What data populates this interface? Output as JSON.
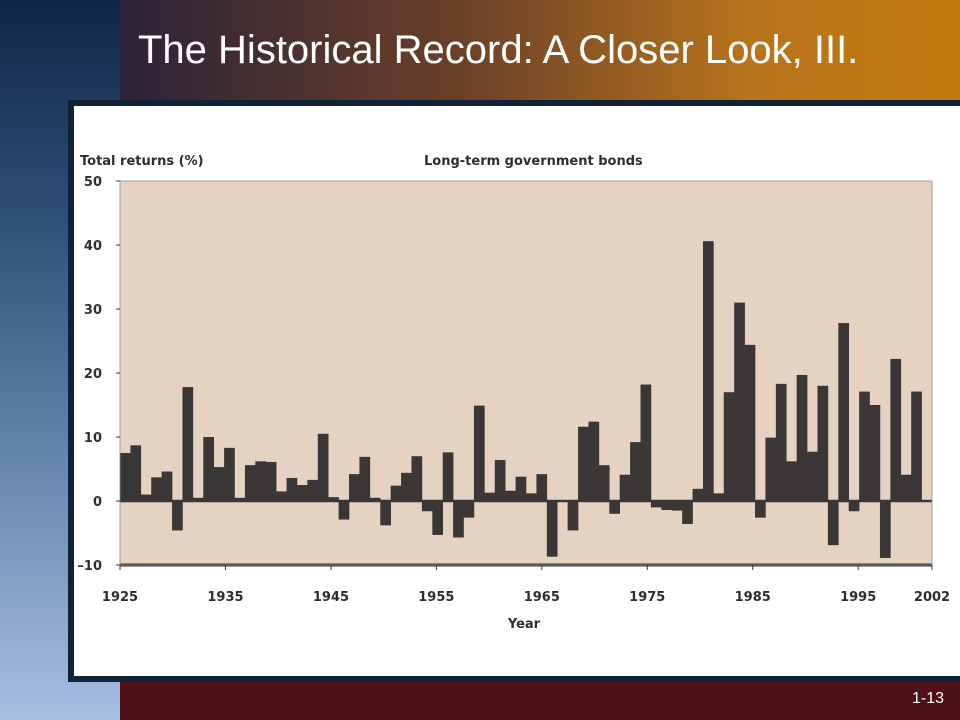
{
  "slide": {
    "title": "The Historical Record: A Closer Look, III.",
    "slide_number": "1-13"
  },
  "colors": {
    "plot_background": "#e6d2c1",
    "bar_fill": "#3b3736",
    "axis": "#3b3736"
  },
  "chart_data": {
    "type": "bar",
    "title": "Long-term government bonds",
    "ylabel": "Total returns (%)",
    "xlabel": "Year",
    "ylim": [
      -10,
      50
    ],
    "yticks": [
      -10,
      0,
      10,
      20,
      30,
      40,
      50
    ],
    "ytick_labels": [
      "–10",
      "0",
      "10",
      "20",
      "30",
      "40",
      "50"
    ],
    "xlim": [
      1925,
      2002
    ],
    "xticks": [
      1925,
      1935,
      1945,
      1955,
      1965,
      1975,
      1985,
      1995,
      2002
    ],
    "grid": false,
    "legend": "none",
    "x": [
      1925,
      1926,
      1927,
      1928,
      1929,
      1930,
      1931,
      1932,
      1933,
      1934,
      1935,
      1936,
      1937,
      1938,
      1939,
      1940,
      1941,
      1942,
      1943,
      1944,
      1945,
      1946,
      1947,
      1948,
      1949,
      1950,
      1951,
      1952,
      1953,
      1954,
      1955,
      1956,
      1957,
      1958,
      1959,
      1960,
      1961,
      1962,
      1963,
      1964,
      1965,
      1966,
      1967,
      1968,
      1969,
      1970,
      1971,
      1972,
      1973,
      1974,
      1975,
      1976,
      1977,
      1978,
      1979,
      1980,
      1981,
      1982,
      1983,
      1984,
      1985,
      1986,
      1987,
      1988,
      1989,
      1990,
      1991,
      1992,
      1993,
      1994,
      1995,
      1996,
      1997,
      1998,
      1999,
      2000,
      2001
    ],
    "values": [
      7.5,
      8.7,
      1.0,
      3.7,
      4.6,
      -4.6,
      17.8,
      0.5,
      10.0,
      5.3,
      8.3,
      0.5,
      5.6,
      6.2,
      6.1,
      1.5,
      3.6,
      2.5,
      3.3,
      10.5,
      0.6,
      -2.9,
      4.2,
      6.9,
      0.5,
      -3.8,
      2.4,
      4.4,
      7.0,
      -1.6,
      -5.3,
      7.6,
      -5.7,
      -2.6,
      14.9,
      1.3,
      6.4,
      1.6,
      3.8,
      1.2,
      4.2,
      -8.7,
      0.0,
      -4.6,
      11.6,
      12.4,
      5.6,
      -2.0,
      4.1,
      9.2,
      18.2,
      -1.0,
      -1.4,
      -1.5,
      -3.6,
      1.9,
      40.6,
      1.2,
      17.0,
      31.0,
      24.4,
      -2.6,
      9.9,
      18.3,
      6.2,
      19.7,
      7.7,
      18.0,
      -6.9,
      27.8,
      -1.6,
      17.1,
      15.0,
      -8.9,
      22.2,
      4.1,
      17.1
    ]
  }
}
